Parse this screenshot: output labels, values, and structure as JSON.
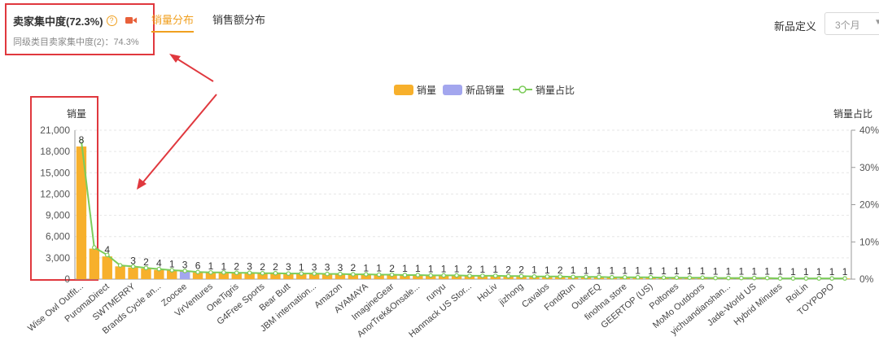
{
  "header": {
    "concentration_title": "卖家集中度(72.3%)",
    "help_glyph": "?",
    "same_category_text": "同级类目卖家集中度(2)：74.3%",
    "tabs": [
      {
        "label": "销量分布",
        "active": true
      },
      {
        "label": "销售额分布",
        "active": false
      }
    ],
    "new_product_label": "新品定义",
    "period_value": "3个月"
  },
  "colors": {
    "bar": "#f7b02c",
    "new_bar": "#a3a6ee",
    "line": "#7ccc5a",
    "accent": "#f0a020",
    "annotation": "#e0383e"
  },
  "icons": [
    "help-icon",
    "video-icon",
    "chevron-down-icon"
  ],
  "chart_data": {
    "type": "bar",
    "ylabel_left": "销量",
    "ylabel_right": "销量占比",
    "ylim_left": [
      0,
      21000
    ],
    "yticks_left": [
      "0",
      "3,000",
      "6,000",
      "9,000",
      "12,000",
      "15,000",
      "18,000",
      "21,000"
    ],
    "ylim_right": [
      0,
      40
    ],
    "yticks_right": [
      "0%",
      "10%",
      "20%",
      "30%",
      "40%"
    ],
    "legend": [
      "销量",
      "新品销量",
      "销量占比"
    ],
    "legend_position": "top-center",
    "categories": [
      "Wise Owl Outfit...",
      "",
      "PuromaDirect",
      "",
      "SWTMERRY",
      "",
      "Brands Cycle an...",
      "",
      "Zoocee",
      "",
      "VirVentures",
      "",
      "OneTigris",
      "",
      "G4Free Sports",
      "",
      "Bear Butt",
      "",
      "JBM internation...",
      "",
      "Amazon",
      "",
      "AYAMAYA",
      "",
      "ImagineGear",
      "",
      "AnorTrek&Onsale...",
      "",
      "runyu",
      "",
      "Hanmack US Stor...",
      "",
      "HoLiv",
      "",
      "jizhong",
      "",
      "Cavalos",
      "",
      "FondRun",
      "",
      "OuterEQ",
      "",
      "finohna store",
      "",
      "GEERTOP (US)",
      "",
      "Poltones",
      "",
      "MoMo Outdoors",
      "",
      "yichuandianshan...",
      "",
      "Jade-World US",
      "",
      "Hybrid Minutes",
      "",
      "RoiLin",
      "",
      "TOYPOPO",
      ""
    ],
    "series": [
      {
        "name": "销量",
        "values": [
          18700,
          4300,
          3200,
          1800,
          1650,
          1500,
          1300,
          1200,
          1100,
          950,
          900,
          880,
          860,
          840,
          820,
          800,
          780,
          760,
          740,
          720,
          700,
          680,
          650,
          620,
          600,
          580,
          560,
          540,
          520,
          500,
          480,
          460,
          440,
          420,
          400,
          380,
          360,
          340,
          320,
          300,
          290,
          280,
          270,
          260,
          250,
          240,
          230,
          220,
          210,
          200,
          190,
          180,
          170,
          160,
          150,
          140,
          130,
          120,
          110,
          100
        ]
      },
      {
        "name": "新品销量",
        "values": [
          0,
          0,
          0,
          0,
          0,
          0,
          0,
          0,
          1050,
          0,
          0,
          0,
          0,
          0,
          0,
          0,
          0,
          0,
          0,
          0,
          0,
          0,
          0,
          0,
          0,
          0,
          0,
          0,
          0,
          0,
          0,
          0,
          0,
          0,
          0,
          0,
          0,
          0,
          0,
          0,
          0,
          0,
          0,
          0,
          0,
          0,
          0,
          0,
          0,
          0,
          0,
          0,
          0,
          0,
          0,
          0,
          0,
          0,
          0,
          0
        ]
      },
      {
        "name": "销量占比",
        "values": [
          37.0,
          8.5,
          6.5,
          3.7,
          3.4,
          3.0,
          2.7,
          2.4,
          2.2,
          1.9,
          1.8,
          1.8,
          1.7,
          1.7,
          1.6,
          1.6,
          1.5,
          1.5,
          1.5,
          1.4,
          1.4,
          1.3,
          1.3,
          1.2,
          1.2,
          1.1,
          1.1,
          1.0,
          1.0,
          1.0,
          0.9,
          0.9,
          0.9,
          0.8,
          0.8,
          0.7,
          0.7,
          0.7,
          0.6,
          0.6,
          0.6,
          0.5,
          0.5,
          0.5,
          0.5,
          0.4,
          0.4,
          0.4,
          0.4,
          0.3,
          0.3,
          0.3,
          0.3,
          0.3,
          0.2,
          0.2,
          0.2,
          0.2,
          0.2,
          0.2
        ]
      }
    ],
    "data_labels": [
      "8",
      "",
      "4",
      "",
      "3",
      "2",
      "4",
      "1",
      "3",
      "6",
      "1",
      "1",
      "2",
      "3",
      "2",
      "2",
      "3",
      "1",
      "3",
      "3",
      "3",
      "2",
      "1",
      "1",
      "2",
      "1",
      "1",
      "1",
      "1",
      "1",
      "2",
      "1",
      "1",
      "2",
      "2",
      "1",
      "1",
      "2",
      "1",
      "1",
      "1",
      "1",
      "1",
      "1",
      "1",
      "1",
      "1",
      "1",
      "1",
      "1",
      "1",
      "1",
      "1",
      "1",
      "1",
      "1",
      "1",
      "1",
      "1",
      "1"
    ],
    "grid": true
  }
}
